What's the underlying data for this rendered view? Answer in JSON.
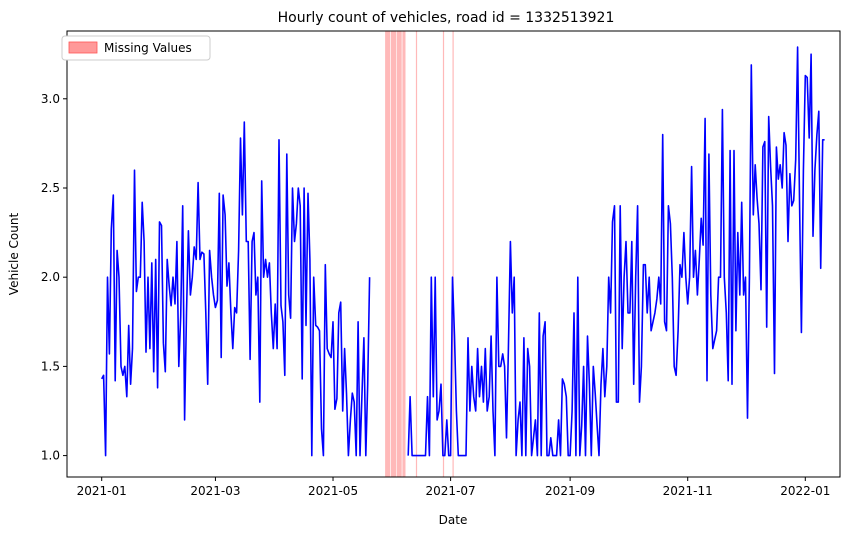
{
  "chart_data": {
    "type": "line",
    "title": "Hourly count of vehicles, road id = 1332513921",
    "xlabel": "Date",
    "ylabel": "Vehicle Count",
    "xlim": [
      "2020-12-14",
      "2022-01-19"
    ],
    "ylim": [
      0.88,
      3.38
    ],
    "x_ticks": [
      "2021-01",
      "2021-03",
      "2021-05",
      "2021-07",
      "2021-09",
      "2021-11",
      "2022-01"
    ],
    "y_ticks": [
      "1.0",
      "1.5",
      "2.0",
      "2.5",
      "3.0"
    ],
    "grid": false,
    "legend_position": "top-left",
    "legend": [
      {
        "label": "Missing Values",
        "color": "#ff9999"
      }
    ],
    "series": [
      {
        "color": "#0000ff",
        "start_date": "2021-01-01",
        "values": [
          1.43,
          1.45,
          1.0,
          2.0,
          1.57,
          2.27,
          2.46,
          1.42,
          2.15,
          2.0,
          1.5,
          1.45,
          1.5,
          1.33,
          1.73,
          1.4,
          1.6,
          2.6,
          1.92,
          2.0,
          2.0,
          2.42,
          2.2,
          1.58,
          2.0,
          1.6,
          2.08,
          1.47,
          2.1,
          1.38,
          2.31,
          2.29,
          1.63,
          1.47,
          2.1,
          1.95,
          1.84,
          2.0,
          1.85,
          2.2,
          1.5,
          1.78,
          2.4,
          1.2,
          1.8,
          2.26,
          1.9,
          2.0,
          2.17,
          2.1,
          2.53,
          2.1,
          2.14,
          2.13,
          1.8,
          1.4,
          2.15,
          2.0,
          1.9,
          1.83,
          1.87,
          2.47,
          1.55,
          2.46,
          2.35,
          1.95,
          2.08,
          1.8,
          1.6,
          1.83,
          1.8,
          2.15,
          2.78,
          2.35,
          2.87,
          2.2,
          2.2,
          1.54,
          2.2,
          2.25,
          1.9,
          2.0,
          1.3,
          2.54,
          2.0,
          2.1,
          2.0,
          2.08,
          1.8,
          1.6,
          1.85,
          1.6,
          2.77,
          1.84,
          1.75,
          1.45,
          2.69,
          1.9,
          1.77,
          2.5,
          2.2,
          2.3,
          2.5,
          2.4,
          1.43,
          2.5,
          1.73,
          2.47,
          2.1,
          1.0,
          2.0,
          1.73,
          1.72,
          1.7,
          1.15,
          1.0,
          2.07,
          1.6,
          1.57,
          1.55,
          1.75,
          1.26,
          1.32,
          1.8,
          1.86,
          1.25,
          1.6,
          1.35,
          1.0,
          1.2,
          1.35,
          1.3,
          1.0,
          1.75,
          1.0,
          1.33,
          1.66,
          1.0,
          1.4,
          2.0
        ]
      },
      {
        "color": "#0000ff",
        "start_date": "2021-06-09",
        "values": [
          1.0,
          1.33,
          1.0,
          1.0,
          1.0,
          1.0,
          1.0,
          1.0,
          1.0,
          1.0,
          1.33,
          1.0,
          2.0,
          1.33,
          2.0,
          1.2,
          1.25,
          1.4,
          1.0,
          1.0,
          1.2,
          1.0,
          1.0,
          2.0,
          1.67,
          1.25,
          1.0,
          1.0,
          1.0,
          1.0,
          1.0,
          1.66,
          1.25,
          1.5,
          1.33,
          1.25,
          1.6,
          1.33,
          1.5,
          1.3,
          1.6,
          1.25,
          1.33,
          1.67,
          1.25,
          1.0,
          2.0,
          1.5,
          1.5,
          1.57,
          1.5,
          1.1,
          1.6,
          2.2,
          1.8,
          2.0,
          1.0,
          1.2,
          1.3,
          1.0,
          1.66,
          1.0,
          1.6,
          1.5,
          1.0,
          1.1,
          1.2,
          1.0,
          1.8,
          1.0,
          1.67,
          1.75,
          1.0,
          1.0,
          1.1,
          1.0,
          1.0,
          1.0,
          1.2,
          1.0,
          1.43,
          1.4,
          1.33,
          1.0,
          1.0,
          1.25,
          1.8,
          1.0,
          2.0,
          1.0,
          1.17,
          1.5,
          1.0,
          1.67,
          1.4,
          1.0,
          1.5,
          1.35,
          1.17,
          1.0,
          1.4,
          1.6,
          1.33,
          1.5,
          2.0,
          1.8,
          2.31,
          2.4,
          1.3,
          1.3,
          2.4,
          1.6,
          2.0,
          2.2,
          1.8,
          1.8,
          2.2,
          1.4,
          2.0,
          2.4,
          1.3,
          1.5,
          2.07,
          2.07,
          1.8,
          2.0,
          1.7,
          1.75,
          1.8,
          1.88,
          2.0,
          1.85,
          2.8,
          1.75,
          1.7,
          2.4,
          2.3,
          2.0,
          1.5,
          1.45,
          1.7,
          2.07,
          2.0,
          2.25,
          2.0,
          1.85,
          2.0,
          2.62,
          2.0,
          2.15,
          1.9,
          2.1,
          2.33,
          2.18,
          2.89,
          1.42,
          2.69,
          1.9,
          1.6,
          1.65,
          1.7,
          2.0,
          2.0,
          2.94,
          2.0,
          1.8,
          1.42,
          2.71,
          1.4,
          2.71,
          1.7,
          2.25,
          1.9,
          2.42,
          1.9,
          2.0,
          1.21,
          2.0,
          3.19,
          2.35,
          2.63,
          2.44,
          2.3,
          1.93,
          2.73,
          2.76,
          1.72,
          2.9,
          2.62,
          2.4,
          1.46,
          2.73,
          2.55,
          2.63,
          2.5,
          2.81,
          2.74,
          2.2,
          2.58,
          2.4,
          2.43,
          2.66,
          3.29,
          2.44,
          1.69,
          2.6,
          3.13,
          3.12,
          2.78,
          3.25,
          2.23,
          2.6,
          2.8,
          2.93,
          2.05,
          2.77,
          2.77
        ]
      }
    ],
    "missing_intervals": [
      [
        "2021-05-28",
        "2021-05-30"
      ],
      [
        "2021-05-31",
        "2021-06-02"
      ],
      [
        "2021-06-03",
        "2021-06-05"
      ],
      [
        "2021-06-06",
        "2021-06-07"
      ],
      [
        "2021-06-13",
        "2021-06-13"
      ],
      [
        "2021-06-27",
        "2021-06-27"
      ],
      [
        "2021-07-02",
        "2021-07-02"
      ]
    ]
  }
}
